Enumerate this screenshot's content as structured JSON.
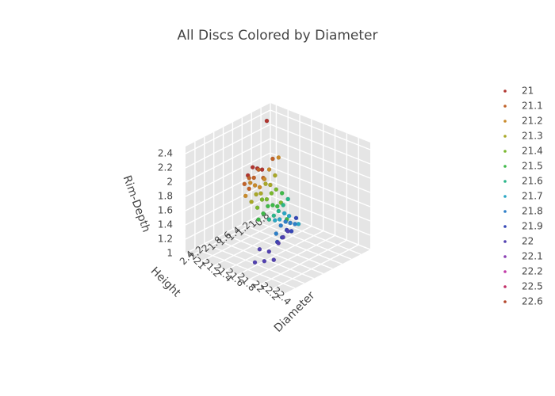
{
  "chart_data": {
    "type": "scatter3d",
    "title": "All Discs Colored by Diameter",
    "axes": {
      "x": {
        "label": "Diameter",
        "range": [
          20.9,
          22.6
        ],
        "ticks": [
          "21",
          "21.2",
          "21.4",
          "21.6",
          "21.8",
          "22",
          "22.2",
          "22.4"
        ]
      },
      "y": {
        "label": "Height",
        "range": [
          0.8,
          2.6
        ],
        "ticks": [
          "0.8",
          "1",
          "1.2",
          "1.4",
          "1.6",
          "1.8",
          "2",
          "2.2",
          "2.4"
        ]
      },
      "z": {
        "label": "Rim-Depth",
        "range": [
          1.0,
          2.5
        ],
        "ticks": [
          "1",
          "1.2",
          "1.4",
          "1.6",
          "1.8",
          "2",
          "2.2",
          "2.4"
        ]
      }
    },
    "grid": true,
    "legend_position": "right",
    "series": [
      {
        "name": "21",
        "color": "#b03530",
        "points": [
          [
            21.0,
            1.0,
            2.35
          ],
          [
            21.0,
            1.3,
            1.8
          ],
          [
            21.0,
            1.2,
            1.75
          ],
          [
            21.0,
            1.4,
            1.72
          ],
          [
            21.0,
            1.1,
            1.7
          ]
        ]
      },
      {
        "name": "21.1",
        "color": "#c0622a",
        "points": [
          [
            21.1,
            1.3,
            1.8
          ],
          [
            21.1,
            1.4,
            1.72
          ],
          [
            21.1,
            1.5,
            1.75
          ],
          [
            21.1,
            1.2,
            1.65
          ],
          [
            21.1,
            1.6,
            1.7
          ],
          [
            21.1,
            1.0,
            1.85
          ],
          [
            21.1,
            1.5,
            1.6
          ]
        ]
      },
      {
        "name": "21.2",
        "color": "#c98a2a",
        "points": [
          [
            21.2,
            1.3,
            1.7
          ],
          [
            21.2,
            1.5,
            1.68
          ],
          [
            21.2,
            1.4,
            1.62
          ],
          [
            21.2,
            1.6,
            1.75
          ],
          [
            21.2,
            1.2,
            1.8
          ],
          [
            21.2,
            1.7,
            1.6
          ],
          [
            21.2,
            1.0,
            1.9
          ]
        ]
      },
      {
        "name": "21.3",
        "color": "#a9a828",
        "points": [
          [
            21.3,
            1.4,
            1.7
          ],
          [
            21.3,
            1.5,
            1.6
          ],
          [
            21.3,
            1.3,
            1.65
          ],
          [
            21.3,
            1.6,
            1.62
          ],
          [
            21.3,
            1.7,
            1.55
          ],
          [
            21.3,
            1.2,
            1.75
          ]
        ]
      },
      {
        "name": "21.4",
        "color": "#7ab82e",
        "points": [
          [
            21.4,
            1.4,
            1.6
          ],
          [
            21.4,
            1.5,
            1.55
          ],
          [
            21.4,
            1.6,
            1.58
          ],
          [
            21.4,
            1.3,
            1.62
          ],
          [
            21.4,
            1.7,
            1.5
          ],
          [
            21.4,
            1.2,
            1.4
          ]
        ]
      },
      {
        "name": "21.5",
        "color": "#3fb949",
        "points": [
          [
            21.5,
            1.3,
            1.6
          ],
          [
            21.5,
            1.5,
            1.5
          ],
          [
            21.5,
            1.6,
            1.52
          ],
          [
            21.5,
            1.4,
            1.45
          ],
          [
            21.5,
            1.7,
            1.45
          ],
          [
            21.5,
            1.2,
            1.2
          ],
          [
            21.5,
            1.8,
            1.4
          ]
        ]
      },
      {
        "name": "21.6",
        "color": "#2bb68a",
        "points": [
          [
            21.6,
            1.4,
            1.5
          ],
          [
            21.6,
            1.5,
            1.45
          ],
          [
            21.6,
            1.6,
            1.42
          ],
          [
            21.6,
            1.3,
            1.55
          ],
          [
            21.6,
            1.7,
            1.4
          ]
        ]
      },
      {
        "name": "21.7",
        "color": "#2aa6c4",
        "points": [
          [
            21.7,
            1.5,
            1.45
          ],
          [
            21.7,
            1.6,
            1.4
          ],
          [
            21.7,
            1.4,
            1.38
          ],
          [
            21.7,
            1.7,
            1.42
          ],
          [
            21.7,
            1.2,
            1.2
          ]
        ]
      },
      {
        "name": "21.8",
        "color": "#2e7fc8",
        "points": [
          [
            21.8,
            1.5,
            1.35
          ],
          [
            21.8,
            1.6,
            1.4
          ],
          [
            21.8,
            1.7,
            1.38
          ],
          [
            21.8,
            1.4,
            1.3
          ],
          [
            21.8,
            1.8,
            1.3
          ]
        ]
      },
      {
        "name": "21.9",
        "color": "#3547b6",
        "points": [
          [
            21.9,
            1.6,
            1.3
          ],
          [
            21.9,
            1.7,
            1.35
          ],
          [
            21.9,
            1.8,
            1.28
          ],
          [
            21.9,
            1.5,
            1.45
          ],
          [
            21.9,
            1.9,
            1.25
          ]
        ]
      },
      {
        "name": "22",
        "color": "#5241b0",
        "points": [
          [
            22.0,
            1.8,
            1.4
          ],
          [
            22.0,
            2.0,
            1.3
          ],
          [
            22.0,
            1.9,
            1.35
          ],
          [
            22.0,
            2.4,
            1.35
          ],
          [
            22.0,
            2.5,
            1.2
          ],
          [
            22.0,
            2.1,
            1.1
          ],
          [
            22.0,
            2.3,
            1.15
          ],
          [
            22.0,
            2.2,
            1.25
          ]
        ]
      },
      {
        "name": "22.1",
        "color": "#8a3fb2",
        "points": []
      },
      {
        "name": "22.2",
        "color": "#c23aa8",
        "points": []
      },
      {
        "name": "22.5",
        "color": "#c22e66",
        "points": []
      },
      {
        "name": "22.6",
        "color": "#b3452a",
        "points": []
      }
    ]
  }
}
